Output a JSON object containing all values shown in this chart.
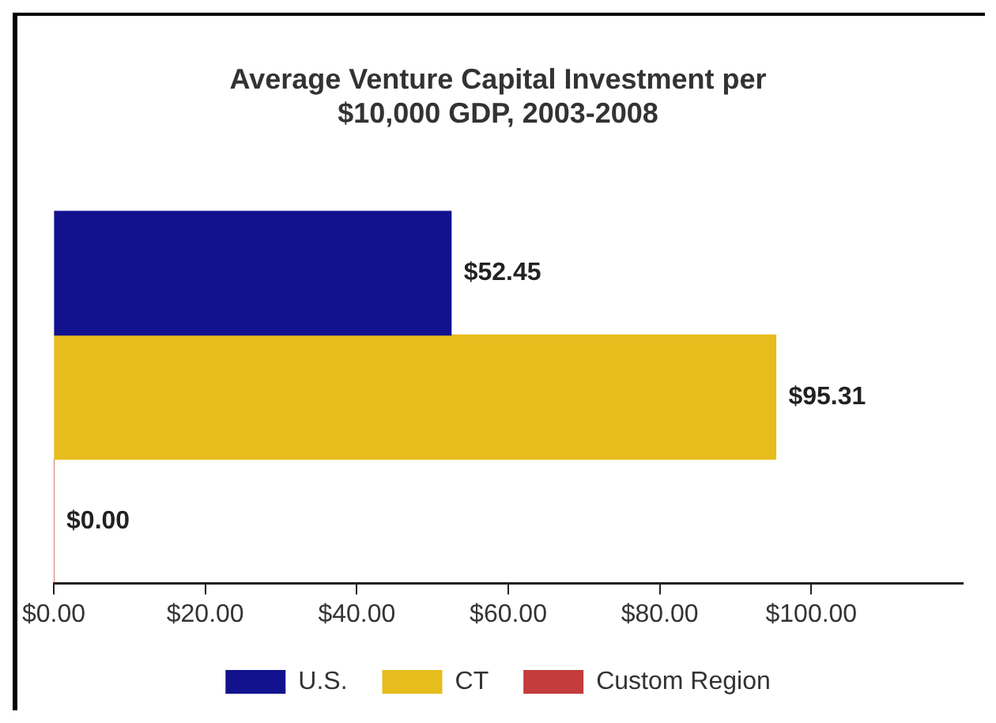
{
  "chart_data": {
    "type": "bar",
    "orientation": "horizontal",
    "title": "Average Venture Capital Investment per\n$10,000 GDP, 2003-2008",
    "categories": [
      null
    ],
    "series": [
      {
        "name": "U.S.",
        "color": "#12128f",
        "values": [
          52.45
        ],
        "value_labels": [
          "$52.45"
        ]
      },
      {
        "name": "CT",
        "color": "#e6bd1c",
        "values": [
          95.31
        ],
        "value_labels": [
          "$95.31"
        ]
      },
      {
        "name": "Custom Region",
        "color": "#c43c3c",
        "values": [
          0
        ],
        "value_labels": [
          "$0.00"
        ]
      }
    ],
    "xlim": [
      0,
      120
    ],
    "xticks": [
      {
        "value": 0,
        "label": "$0.00"
      },
      {
        "value": 20,
        "label": "$20.00"
      },
      {
        "value": 40,
        "label": "$40.00"
      },
      {
        "value": 60,
        "label": "$60.00"
      },
      {
        "value": 80,
        "label": "$80.00"
      },
      {
        "value": 100,
        "label": "$100.00"
      }
    ],
    "grid": false,
    "legend": "bottom"
  }
}
